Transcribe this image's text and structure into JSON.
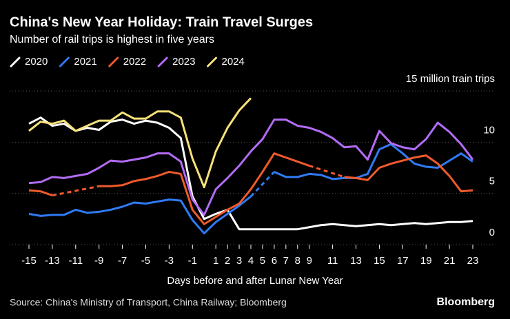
{
  "chart_data": {
    "type": "line",
    "title": "China's New Year Holiday: Train Travel Surges",
    "subtitle": "Number of rail trips is highest in five years",
    "x_label": "Days before and after Lunar New Year",
    "source": "Source: China's Ministry of Transport, China Railway; Bloomberg",
    "brand": "Bloomberg",
    "x": [
      -15,
      -14,
      -13,
      -12,
      -11,
      -10,
      -9,
      -8,
      -7,
      -6,
      -5,
      -4,
      -3,
      -2,
      -1,
      0,
      1,
      2,
      3,
      4,
      5,
      6,
      7,
      8,
      9,
      10,
      11,
      12,
      13,
      14,
      15,
      16,
      17,
      18,
      19,
      20,
      21,
      22,
      23
    ],
    "xlim": [
      -15.6,
      23.6
    ],
    "xticks": [
      -15,
      -13,
      -11,
      -9,
      -7,
      -5,
      -3,
      -1,
      1,
      2,
      3,
      4,
      5,
      6,
      7,
      8,
      9,
      11,
      13,
      15,
      17,
      19,
      21,
      23
    ],
    "ylim": [
      0,
      15
    ],
    "yticks": [
      0,
      5,
      10,
      {
        "value": 15,
        "label": "15 million train trips"
      }
    ],
    "grid": true,
    "series": [
      {
        "name": "2020",
        "color": "#ffffff",
        "values": [
          11.8,
          12.4,
          11.6,
          11.8,
          11.1,
          11.4,
          11.2,
          12.0,
          12.2,
          11.8,
          12.1,
          11.9,
          11.4,
          10.4,
          4.7,
          2.5,
          3.0,
          3.4,
          1.5,
          1.5,
          1.5,
          1.5,
          1.5,
          1.5,
          1.7,
          1.9,
          2.0,
          1.9,
          1.8,
          1.9,
          2.0,
          1.9,
          2.0,
          2.1,
          2.0,
          2.1,
          2.2,
          2.2,
          2.3
        ]
      },
      {
        "name": "2021",
        "color": "#2f7bf5",
        "values": [
          3.0,
          2.8,
          2.9,
          2.9,
          3.4,
          3.1,
          3.2,
          3.4,
          3.7,
          4.1,
          4.0,
          4.2,
          4.4,
          4.3,
          2.4,
          1.1,
          2.2,
          3.0,
          3.8,
          4.7,
          null,
          7.1,
          6.6,
          6.6,
          6.9,
          6.8,
          6.4,
          6.5,
          6.5,
          6.9,
          9.3,
          9.8,
          8.9,
          7.9,
          7.6,
          7.5,
          8.2,
          8.9,
          8.1
        ]
      },
      {
        "name": "2022",
        "color": "#f05a2b",
        "values": [
          5.3,
          5.2,
          4.8,
          null,
          null,
          null,
          5.7,
          5.7,
          5.8,
          6.2,
          6.4,
          6.7,
          7.1,
          6.9,
          3.4,
          2.0,
          2.7,
          3.4,
          4.0,
          5.4,
          7.1,
          8.9,
          8.5,
          8.1,
          7.7,
          null,
          null,
          6.6,
          6.5,
          6.3,
          7.5,
          7.9,
          8.2,
          8.5,
          8.7,
          7.9,
          6.7,
          5.2,
          5.3
        ]
      },
      {
        "name": "2023",
        "color": "#b36cf5",
        "values": [
          6.0,
          6.1,
          6.6,
          6.5,
          6.7,
          6.9,
          7.5,
          8.2,
          8.1,
          8.3,
          8.5,
          8.9,
          8.9,
          8.1,
          4.4,
          2.9,
          5.4,
          6.5,
          7.7,
          9.1,
          10.3,
          12.2,
          12.2,
          11.6,
          11.4,
          11.0,
          10.4,
          9.5,
          9.6,
          8.3,
          11.1,
          9.9,
          9.5,
          9.3,
          10.3,
          11.9,
          11.0,
          9.8,
          8.3
        ]
      },
      {
        "name": "2024",
        "color": "#f7e27a",
        "values": [
          11.1,
          12.0,
          11.8,
          12.1,
          11.1,
          11.6,
          12.1,
          12.1,
          12.9,
          12.3,
          12.3,
          13.0,
          13.0,
          12.4,
          8.4,
          5.6,
          9.1,
          11.4,
          13.1,
          14.3,
          null,
          null,
          null,
          null,
          null,
          null,
          null,
          null,
          null,
          null,
          null,
          null,
          null,
          null,
          null,
          null,
          null,
          null,
          null
        ]
      }
    ]
  }
}
